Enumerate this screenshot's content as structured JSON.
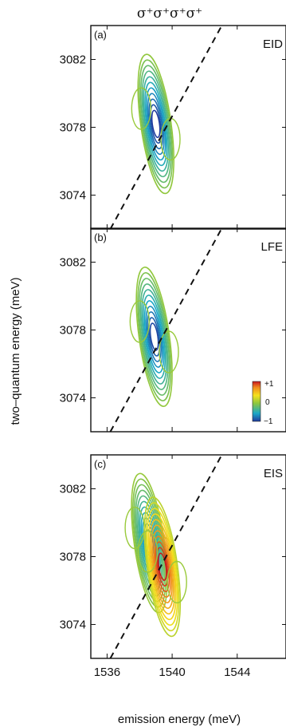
{
  "chart_data": {
    "type": "contour",
    "title": "σ⁺σ⁺σ⁺σ⁺",
    "xlabel": "emission energy (meV)",
    "ylabel": "two–quantum energy (meV)",
    "xlim": [
      1535,
      1547
    ],
    "ylim": [
      3072,
      3084
    ],
    "xticks": [
      1536,
      1540,
      1544
    ],
    "yticks": [
      3074,
      3078,
      3082
    ],
    "colorbar": {
      "ticks": [
        "+1",
        "0",
        "−1"
      ],
      "range": [
        -1,
        1
      ]
    },
    "diagonal_line": {
      "style": "dashed",
      "slope": 2,
      "description": "two-quantum = 2 × emission"
    },
    "panels": [
      {
        "tag": "(a)",
        "name": "EID",
        "peaks": [
          {
            "x": 1539.0,
            "y": 3078.2,
            "amplitude": -1.0
          }
        ]
      },
      {
        "tag": "(b)",
        "name": "LFE",
        "peaks": [
          {
            "x": 1538.9,
            "y": 3077.6,
            "amplitude": -0.95
          }
        ]
      },
      {
        "tag": "(c)",
        "name": "EIS",
        "peaks": [
          {
            "x": 1538.6,
            "y": 3078.8,
            "amplitude": -0.75
          },
          {
            "x": 1539.4,
            "y": 3077.4,
            "amplitude": 1.0
          }
        ]
      }
    ]
  }
}
